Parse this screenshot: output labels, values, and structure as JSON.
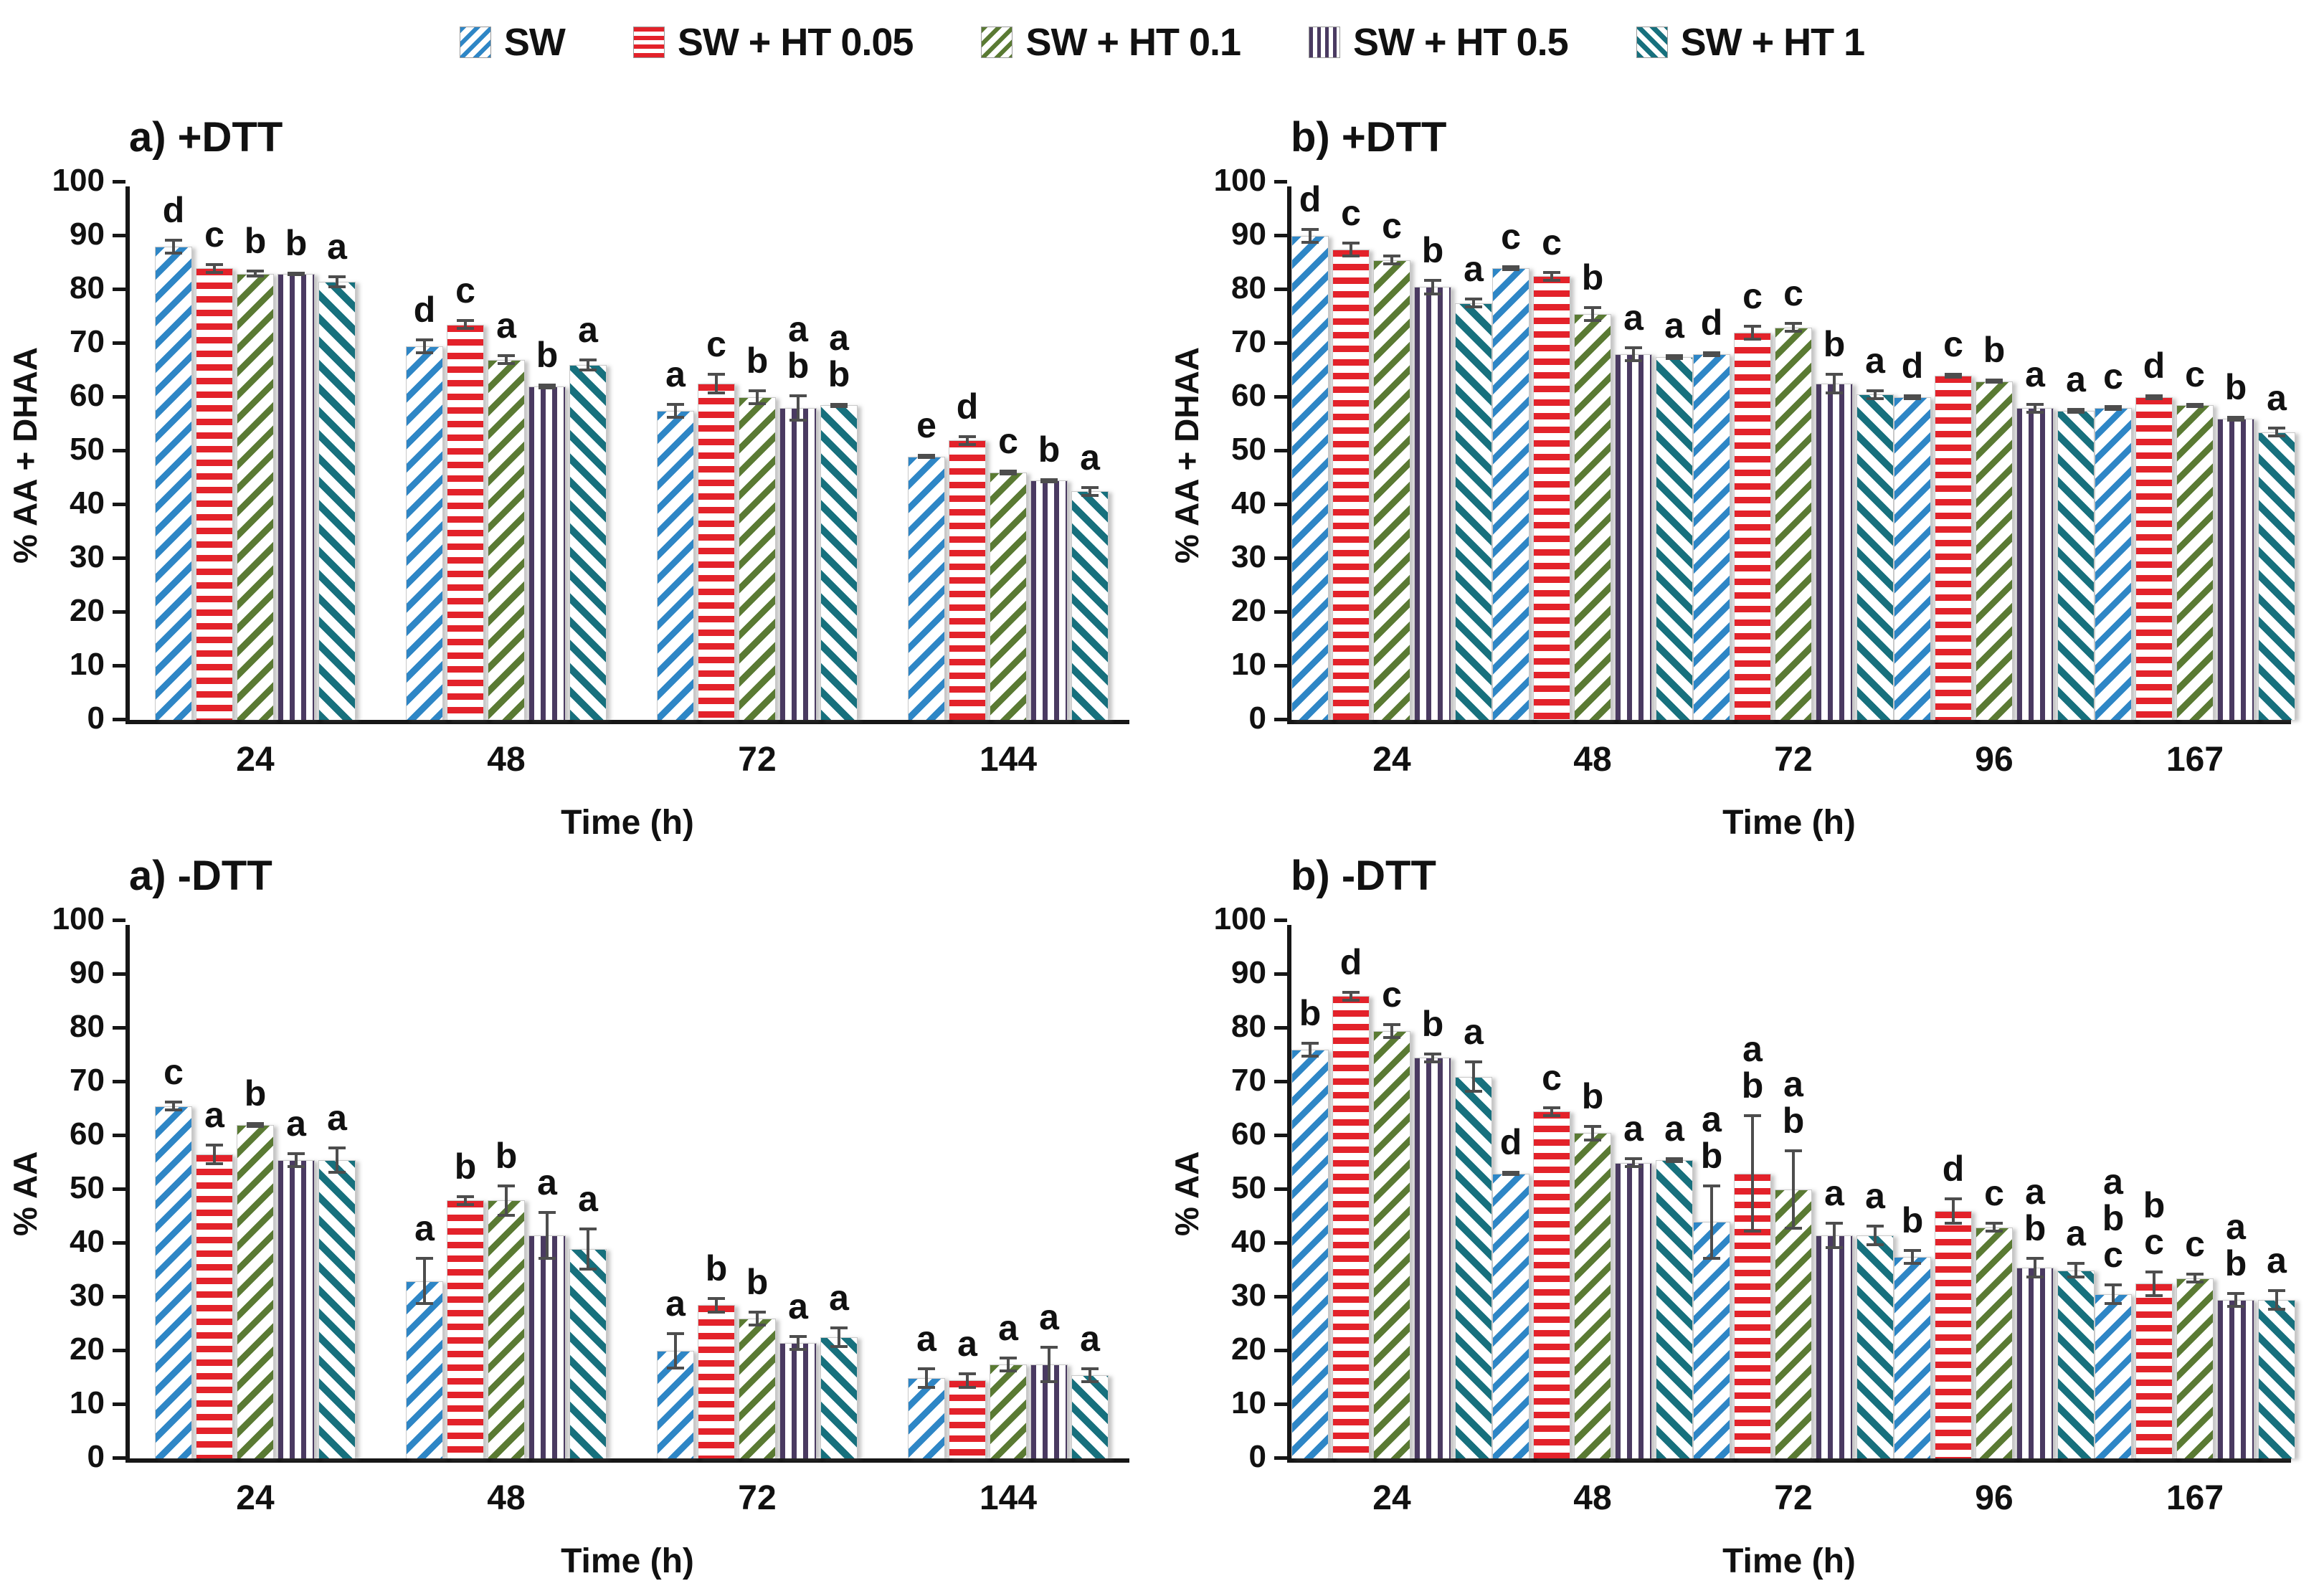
{
  "figure": {
    "error_bar_color": "#4d4d4d",
    "axis_color": "#161616",
    "legend": {
      "items": [
        {
          "label": "SW",
          "color": "#2e86c6",
          "pattern": "diag-up"
        },
        {
          "label": "SW + HT 0.05",
          "color": "#e3222a",
          "pattern": "horizontal"
        },
        {
          "label": "SW + HT 0.1",
          "color": "#5a7a33",
          "pattern": "diag-up"
        },
        {
          "label": "SW + HT 0.5",
          "color": "#4a3a61",
          "pattern": "vertical"
        },
        {
          "label": "SW + HT 1",
          "color": "#17707d",
          "pattern": "diag-down"
        }
      ]
    }
  },
  "chart_data": [
    {
      "type": "bar",
      "title": "a) +DTT",
      "ylabel": "% AA + DHAA",
      "xlabel": "Time (h)",
      "ylim": [
        0,
        100
      ],
      "ytick_step": 10,
      "grid": false,
      "legend_position": "top-center-shared",
      "categories": [
        "24",
        "48",
        "72",
        "144"
      ],
      "series": [
        {
          "name": "SW",
          "values": [
            88,
            69.5,
            57.5,
            49
          ],
          "errors": [
            1.5,
            1.5,
            1.5,
            0.5
          ],
          "letters": [
            "d",
            "d",
            "a",
            "e"
          ]
        },
        {
          "name": "SW + HT 0.05",
          "values": [
            84,
            73.5,
            62.5,
            52
          ],
          "errors": [
            1,
            1,
            2,
            1
          ],
          "letters": [
            "c",
            "c",
            "c",
            "d"
          ]
        },
        {
          "name": "SW + HT 0.1",
          "values": [
            83,
            67,
            60,
            46
          ],
          "errors": [
            0.7,
            1,
            1.5,
            0.5
          ],
          "letters": [
            "b",
            "a",
            "b",
            "c"
          ]
        },
        {
          "name": "SW + HT 0.5",
          "values": [
            83,
            62,
            58,
            44.5
          ],
          "errors": [
            0.4,
            0.5,
            2.5,
            0.5
          ],
          "letters": [
            "b",
            "b",
            "a b",
            "b"
          ]
        },
        {
          "name": "SW + HT 1",
          "values": [
            81.5,
            66,
            58.5,
            42.5
          ],
          "errors": [
            1.2,
            1.2,
            0.5,
            1
          ],
          "letters": [
            "a",
            "a",
            "a b",
            "a"
          ]
        }
      ]
    },
    {
      "type": "bar",
      "title": "b) +DTT",
      "ylabel": "% AA + DHAA",
      "xlabel": "Time (h)",
      "ylim": [
        0,
        100
      ],
      "ytick_step": 10,
      "grid": false,
      "categories": [
        "24",
        "48",
        "72",
        "96",
        "167"
      ],
      "series": [
        {
          "name": "SW",
          "values": [
            90,
            84,
            68,
            60,
            58
          ],
          "errors": [
            1.5,
            0.5,
            0.5,
            0.5,
            0.5
          ],
          "letters": [
            "d",
            "c",
            "d",
            "d",
            "c"
          ]
        },
        {
          "name": "SW + HT 0.05",
          "values": [
            87.5,
            82.5,
            72,
            64,
            60
          ],
          "errors": [
            1.5,
            1,
            1.5,
            0.5,
            0.5
          ],
          "letters": [
            "c",
            "c",
            "c",
            "c",
            "d"
          ]
        },
        {
          "name": "SW + HT 0.1",
          "values": [
            85.5,
            75.5,
            73,
            63,
            58.5
          ],
          "errors": [
            1,
            1.5,
            1,
            0.5,
            0.5
          ],
          "letters": [
            "c",
            "b",
            "c",
            "b",
            "c"
          ]
        },
        {
          "name": "SW + HT 0.5",
          "values": [
            80.5,
            68,
            62.5,
            58,
            56
          ],
          "errors": [
            1.5,
            1.5,
            2,
            1,
            0.5
          ],
          "letters": [
            "b",
            "a",
            "b",
            "a",
            "b"
          ]
        },
        {
          "name": "SW + HT 1",
          "values": [
            77.5,
            67.5,
            60.5,
            57.5,
            53.5
          ],
          "errors": [
            1,
            0.5,
            1,
            0.5,
            1
          ],
          "letters": [
            "a",
            "a",
            "a",
            "a",
            "a"
          ]
        }
      ]
    },
    {
      "type": "bar",
      "title": "a) -DTT",
      "ylabel": "% AA",
      "xlabel": "Time (h)",
      "ylim": [
        0,
        100
      ],
      "ytick_step": 10,
      "grid": false,
      "categories": [
        "24",
        "48",
        "72",
        "144"
      ],
      "series": [
        {
          "name": "SW",
          "values": [
            65.5,
            33,
            20,
            15
          ],
          "errors": [
            1,
            4.5,
            3.5,
            2
          ],
          "letters": [
            "c",
            "a",
            "a",
            "a"
          ]
        },
        {
          "name": "SW + HT 0.05",
          "values": [
            56.5,
            48,
            28.5,
            14.5
          ],
          "errors": [
            2,
            1,
            1.5,
            1.5
          ],
          "letters": [
            "a",
            "b",
            "b",
            "a"
          ]
        },
        {
          "name": "SW + HT 0.1",
          "values": [
            62,
            48,
            26,
            17.5
          ],
          "errors": [
            0.5,
            3,
            1.5,
            1.5
          ],
          "letters": [
            "b",
            "b",
            "b",
            "a"
          ]
        },
        {
          "name": "SW + HT 0.5",
          "values": [
            55.5,
            41.5,
            21.5,
            17.5
          ],
          "errors": [
            1.5,
            4.5,
            1.5,
            3.5
          ],
          "letters": [
            "a",
            "a",
            "a",
            "a"
          ]
        },
        {
          "name": "SW + HT 1",
          "values": [
            55.5,
            39,
            22.5,
            15.5
          ],
          "errors": [
            2.5,
            4,
            2,
            1.5
          ],
          "letters": [
            "a",
            "a",
            "a",
            "a"
          ]
        }
      ]
    },
    {
      "type": "bar",
      "title": "b) -DTT",
      "ylabel": "% AA",
      "xlabel": "Time (h)",
      "ylim": [
        0,
        100
      ],
      "ytick_step": 10,
      "grid": false,
      "categories": [
        "24",
        "48",
        "72",
        "96",
        "167"
      ],
      "series": [
        {
          "name": "SW",
          "values": [
            76,
            53,
            44,
            37.5,
            30.5
          ],
          "errors": [
            1.5,
            0.5,
            7,
            1.5,
            2
          ],
          "letters": [
            "b",
            "d",
            "a b",
            "b",
            "a b c"
          ]
        },
        {
          "name": "SW + HT 0.05",
          "values": [
            86,
            64.5,
            53,
            46,
            32.5
          ],
          "errors": [
            1,
            1,
            11,
            2.5,
            2.5
          ],
          "letters": [
            "d",
            "c",
            "a b",
            "d",
            "b c"
          ]
        },
        {
          "name": "SW + HT 0.1",
          "values": [
            79.5,
            60.5,
            50,
            43,
            33.5
          ],
          "errors": [
            1.5,
            1.5,
            7.5,
            1,
            1
          ],
          "letters": [
            "c",
            "b",
            "a b",
            "c",
            "c"
          ]
        },
        {
          "name": "SW + HT 0.5",
          "values": [
            74.5,
            55,
            41.5,
            35.5,
            29.5
          ],
          "errors": [
            1,
            1,
            2.5,
            2,
            1.5
          ],
          "letters": [
            "b",
            "a",
            "a",
            "a b",
            "a b"
          ]
        },
        {
          "name": "SW + HT 1",
          "values": [
            71,
            55.5,
            41.5,
            35,
            29.5
          ],
          "errors": [
            3,
            0.5,
            2,
            1.5,
            2
          ],
          "letters": [
            "a",
            "a",
            "a",
            "a",
            "a"
          ]
        }
      ]
    }
  ]
}
